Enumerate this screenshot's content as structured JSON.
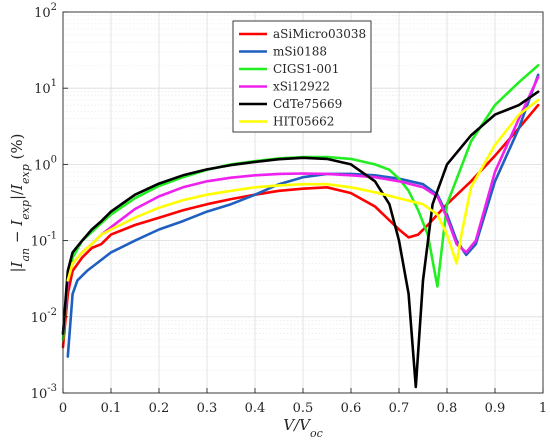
{
  "chart_data": {
    "type": "line",
    "xlabel": "V/V_oc",
    "ylabel": "|I_an − I_exp|/I_exp (%)",
    "xlim": [
      0,
      1
    ],
    "ylim": [
      0.001,
      100
    ],
    "yscale": "log",
    "grid": true,
    "legend_position": "top-right",
    "x_ticks": [
      "0",
      "0.1",
      "0.2",
      "0.3",
      "0.4",
      "0.5",
      "0.6",
      "0.7",
      "0.8",
      "0.9",
      "1"
    ],
    "y_ticks": [
      {
        "value": 0.001,
        "base": "10",
        "exp": "-3"
      },
      {
        "value": 0.01,
        "base": "10",
        "exp": "-2"
      },
      {
        "value": 0.1,
        "base": "10",
        "exp": "-1"
      },
      {
        "value": 1,
        "base": "10",
        "exp": "0"
      },
      {
        "value": 10,
        "base": "10",
        "exp": "1"
      },
      {
        "value": 100,
        "base": "10",
        "exp": "2"
      }
    ],
    "series": [
      {
        "name": "aSiMicro03038",
        "color": "#ff0000",
        "x": [
          0.0,
          0.01,
          0.02,
          0.04,
          0.06,
          0.08,
          0.1,
          0.15,
          0.2,
          0.25,
          0.3,
          0.35,
          0.4,
          0.45,
          0.5,
          0.55,
          0.6,
          0.65,
          0.7,
          0.72,
          0.74,
          0.76,
          0.8,
          0.85,
          0.9,
          0.95,
          0.99
        ],
        "y": [
          0.004,
          0.02,
          0.04,
          0.06,
          0.08,
          0.09,
          0.12,
          0.16,
          0.2,
          0.25,
          0.3,
          0.35,
          0.4,
          0.45,
          0.48,
          0.5,
          0.42,
          0.28,
          0.14,
          0.11,
          0.12,
          0.16,
          0.3,
          0.6,
          1.3,
          3.0,
          6.0
        ]
      },
      {
        "name": "mSi0188",
        "color": "#1f5fbf",
        "x": [
          0.01,
          0.02,
          0.03,
          0.05,
          0.07,
          0.1,
          0.15,
          0.2,
          0.25,
          0.3,
          0.35,
          0.4,
          0.45,
          0.5,
          0.55,
          0.6,
          0.65,
          0.7,
          0.75,
          0.78,
          0.8,
          0.82,
          0.84,
          0.86,
          0.9,
          0.95,
          0.99
        ],
        "y": [
          0.003,
          0.02,
          0.03,
          0.04,
          0.05,
          0.07,
          0.1,
          0.14,
          0.18,
          0.24,
          0.3,
          0.4,
          0.55,
          0.68,
          0.75,
          0.75,
          0.72,
          0.65,
          0.55,
          0.4,
          0.22,
          0.1,
          0.065,
          0.09,
          0.6,
          3.0,
          15.0
        ]
      },
      {
        "name": "CIGS1-001",
        "color": "#22ee22",
        "x": [
          0.0,
          0.01,
          0.02,
          0.04,
          0.06,
          0.08,
          0.1,
          0.15,
          0.2,
          0.25,
          0.3,
          0.35,
          0.4,
          0.45,
          0.5,
          0.55,
          0.6,
          0.65,
          0.68,
          0.7,
          0.72,
          0.74,
          0.76,
          0.78,
          0.8,
          0.85,
          0.9,
          0.95,
          0.99
        ],
        "y": [
          0.005,
          0.03,
          0.06,
          0.1,
          0.13,
          0.17,
          0.22,
          0.36,
          0.52,
          0.68,
          0.85,
          1.0,
          1.1,
          1.2,
          1.25,
          1.25,
          1.18,
          1.0,
          0.85,
          0.65,
          0.45,
          0.25,
          0.12,
          0.025,
          0.3,
          2.0,
          6.0,
          12.0,
          20.0
        ]
      },
      {
        "name": "xSi12922",
        "color": "#ee22ee",
        "x": [
          0.0,
          0.01,
          0.02,
          0.04,
          0.06,
          0.08,
          0.1,
          0.15,
          0.2,
          0.25,
          0.3,
          0.35,
          0.4,
          0.45,
          0.5,
          0.55,
          0.6,
          0.65,
          0.7,
          0.75,
          0.78,
          0.8,
          0.82,
          0.84,
          0.86,
          0.9,
          0.95,
          0.99
        ],
        "y": [
          0.006,
          0.03,
          0.05,
          0.07,
          0.09,
          0.12,
          0.15,
          0.26,
          0.38,
          0.5,
          0.6,
          0.67,
          0.72,
          0.75,
          0.76,
          0.75,
          0.72,
          0.68,
          0.6,
          0.5,
          0.38,
          0.2,
          0.09,
          0.07,
          0.1,
          0.8,
          4.0,
          14.0
        ]
      },
      {
        "name": "CdTe75669",
        "color": "#000000",
        "x": [
          0.0,
          0.01,
          0.02,
          0.04,
          0.06,
          0.08,
          0.1,
          0.15,
          0.2,
          0.25,
          0.3,
          0.35,
          0.4,
          0.45,
          0.5,
          0.55,
          0.6,
          0.65,
          0.68,
          0.7,
          0.72,
          0.735,
          0.75,
          0.77,
          0.8,
          0.85,
          0.9,
          0.95,
          0.99
        ],
        "y": [
          0.006,
          0.04,
          0.07,
          0.1,
          0.14,
          0.18,
          0.24,
          0.4,
          0.56,
          0.72,
          0.86,
          0.98,
          1.08,
          1.17,
          1.22,
          1.18,
          1.0,
          0.6,
          0.3,
          0.1,
          0.02,
          0.0012,
          0.03,
          0.3,
          1.0,
          2.4,
          4.5,
          6.0,
          9.0
        ]
      },
      {
        "name": "HIT05662",
        "color": "#ffff00",
        "x": [
          0.01,
          0.02,
          0.04,
          0.06,
          0.08,
          0.1,
          0.15,
          0.2,
          0.25,
          0.3,
          0.35,
          0.4,
          0.45,
          0.5,
          0.55,
          0.6,
          0.65,
          0.7,
          0.75,
          0.78,
          0.8,
          0.82,
          0.83,
          0.85,
          0.9,
          0.95,
          0.99
        ],
        "y": [
          0.03,
          0.05,
          0.07,
          0.09,
          0.12,
          0.14,
          0.2,
          0.27,
          0.34,
          0.4,
          0.45,
          0.5,
          0.53,
          0.55,
          0.55,
          0.5,
          0.43,
          0.36,
          0.3,
          0.22,
          0.12,
          0.05,
          0.12,
          0.5,
          1.8,
          4.5,
          7.0
        ]
      }
    ]
  }
}
